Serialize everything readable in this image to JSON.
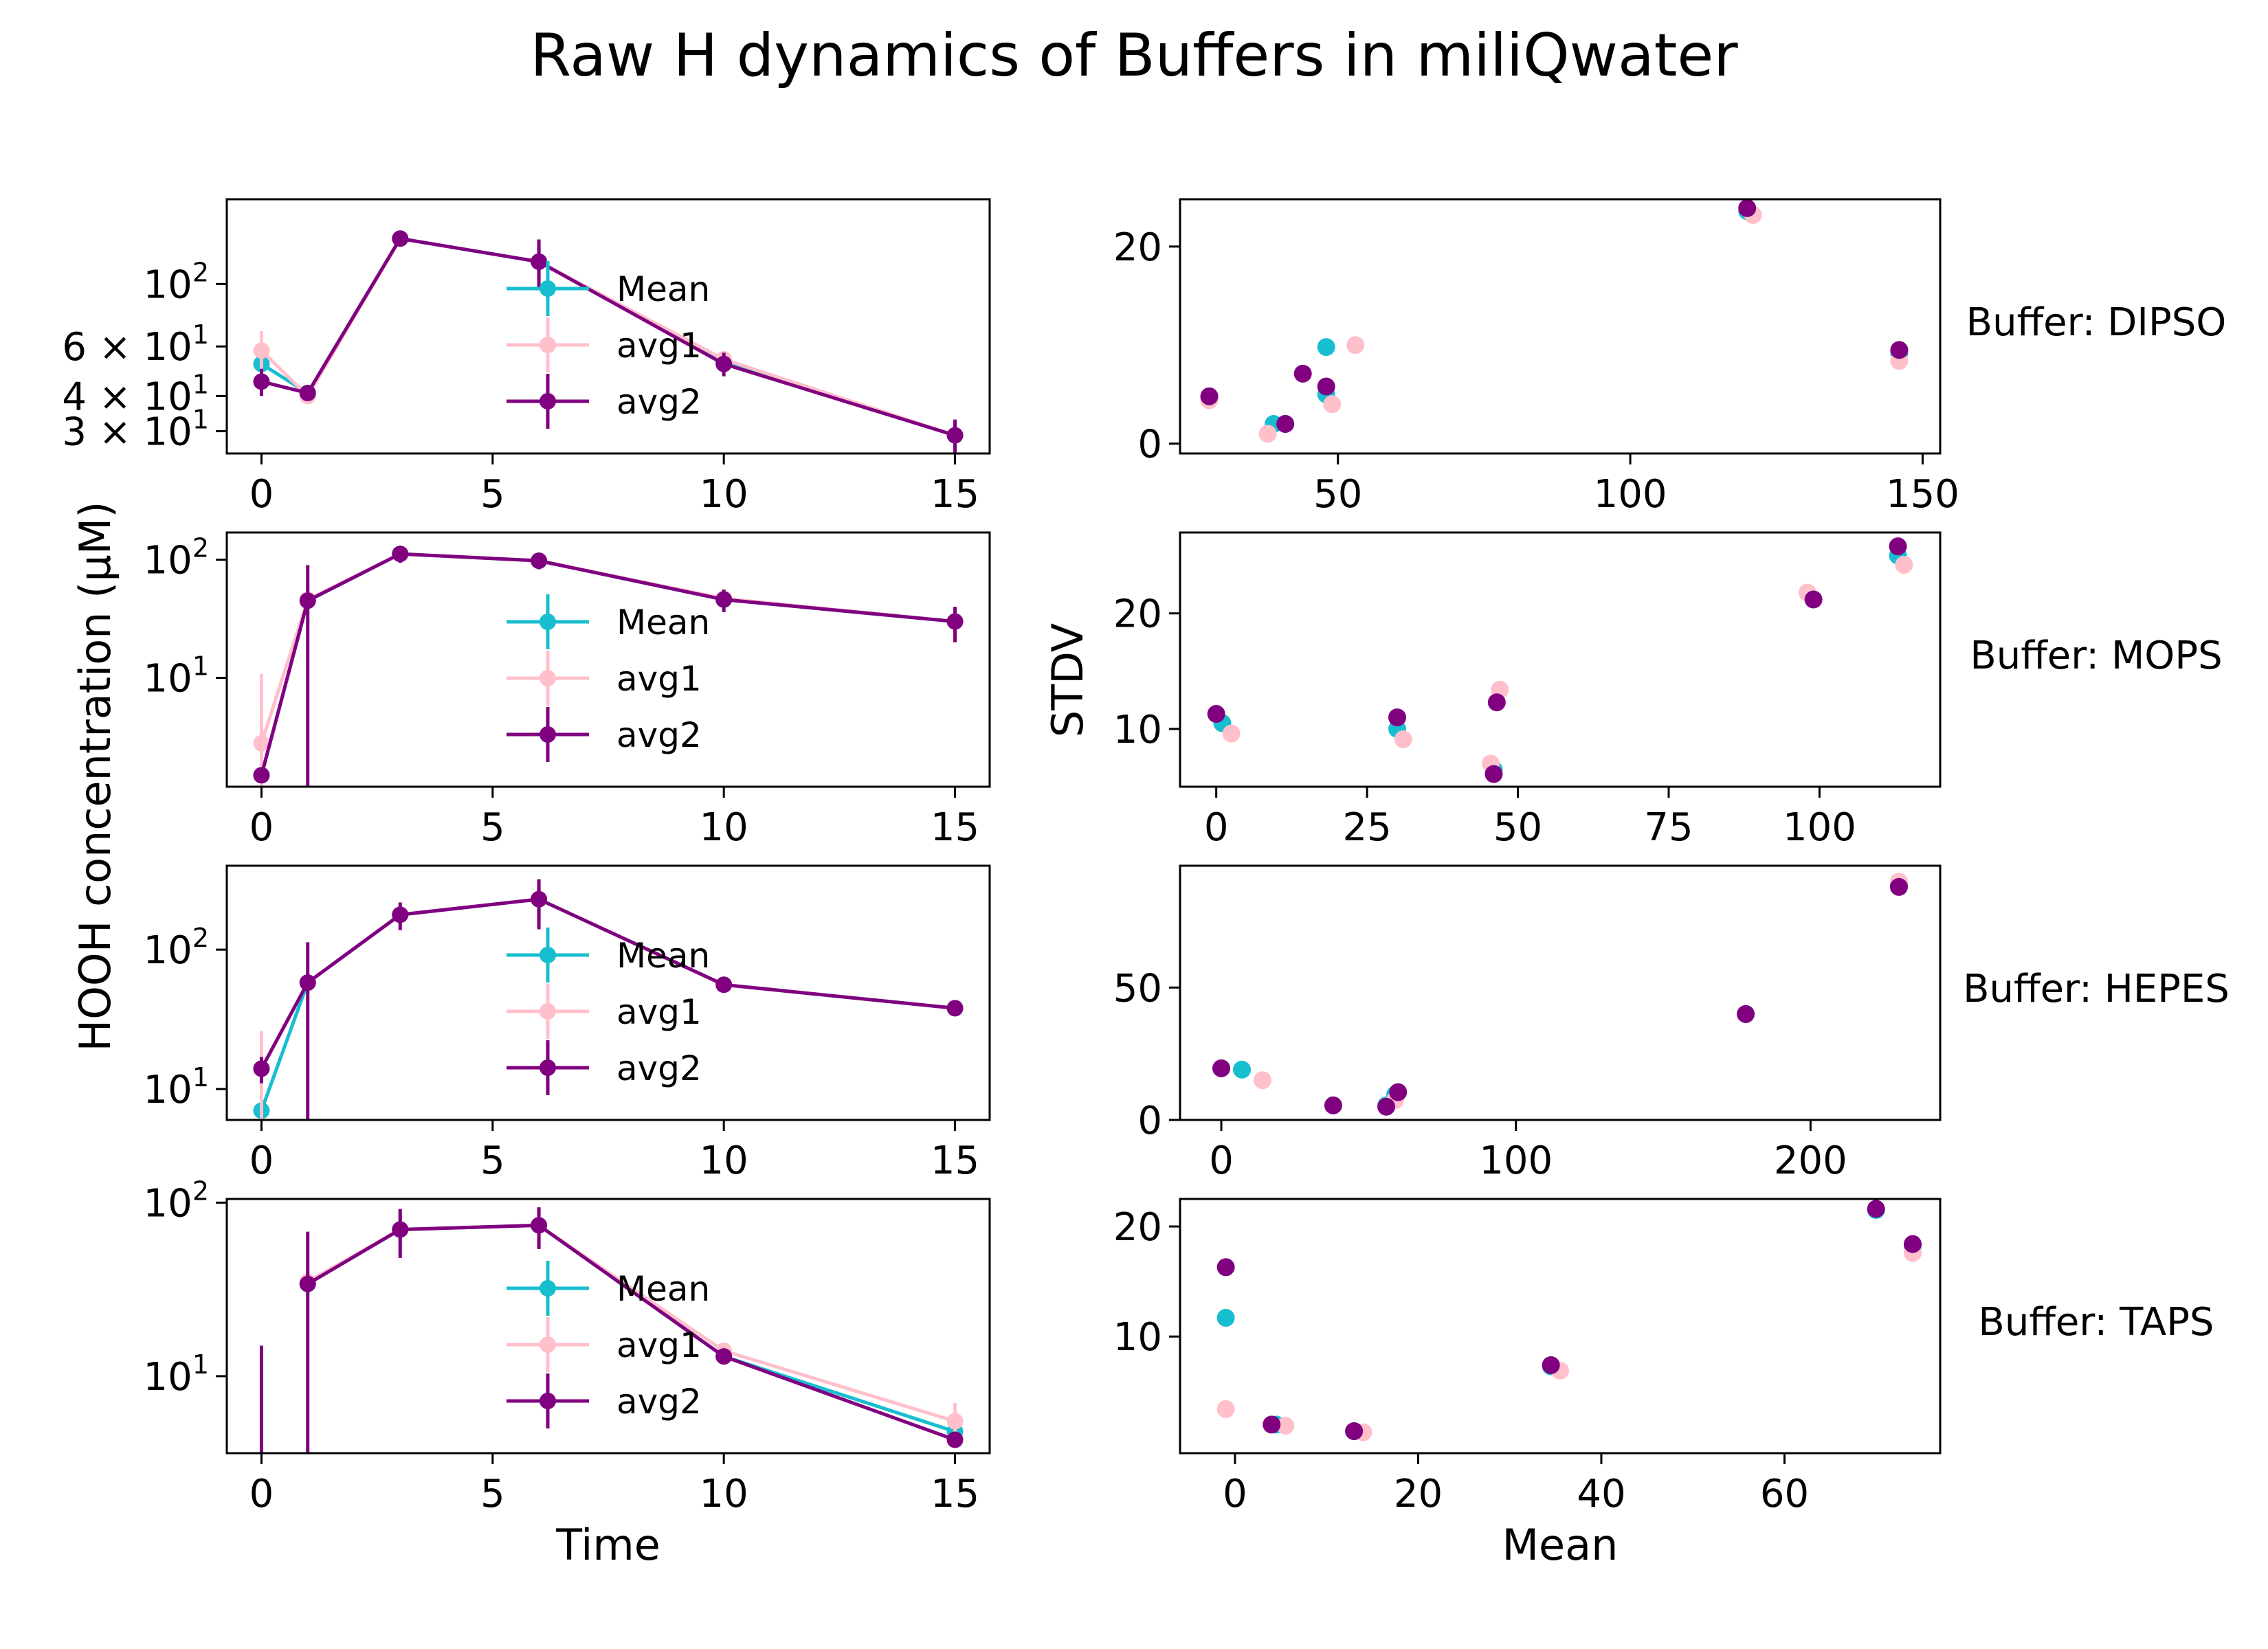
{
  "title": "Raw H dynamics of Buffers in miliQwater",
  "ylabel_left": "HOOH concentration (µM)",
  "ylabel_right": "STDV",
  "xlabel_left": "Time",
  "xlabel_right": "Mean",
  "colors": {
    "Mean": "#17becf",
    "avg1": "#ffc0cb",
    "avg2": "#800080"
  },
  "chart_data": [
    {
      "type": "line",
      "panel": "left",
      "row": 0,
      "buffer_label": "Buffer: DIPSO",
      "yscale": "log",
      "xlim": [
        -0.75,
        15.75
      ],
      "ylim": [
        25,
        200
      ],
      "xticks": [
        0,
        5,
        10,
        15
      ],
      "yticks": [
        {
          "value": 100,
          "label": "10",
          "sup": "2"
        },
        {
          "value": 60,
          "label": "6 × 10",
          "sup": "1"
        },
        {
          "value": 40,
          "label": "4 × 10",
          "sup": "1"
        },
        {
          "value": 30,
          "label": "3 × 10",
          "sup": "1"
        }
      ],
      "legend": [
        "Mean",
        "avg1",
        "avg2"
      ],
      "x": [
        0,
        1,
        3,
        6,
        10,
        15
      ],
      "series": [
        {
          "name": "Mean",
          "values": [
            52,
            41,
            145,
            120,
            53,
            29
          ],
          "err": [
            4,
            1,
            3,
            15,
            3,
            3
          ]
        },
        {
          "name": "avg1",
          "values": [
            58,
            40,
            145,
            120,
            54,
            29
          ],
          "err": [
            10,
            1,
            3,
            15,
            3,
            3
          ]
        },
        {
          "name": "avg2",
          "values": [
            45,
            41,
            145,
            120,
            52,
            29
          ],
          "err": [
            5,
            1,
            3,
            24,
            5,
            4
          ]
        }
      ]
    },
    {
      "type": "scatter",
      "panel": "right",
      "row": 0,
      "xlim": [
        23,
        153
      ],
      "ylim": [
        -1,
        24.8
      ],
      "xticks": [
        50,
        100,
        150
      ],
      "yticks": [
        0,
        20
      ],
      "series": [
        {
          "name": "Mean",
          "points": [
            [
              28,
              4.6
            ],
            [
              39,
              2
            ],
            [
              41,
              2
            ],
            [
              48,
              9.8
            ],
            [
              48,
              5
            ],
            [
              146,
              9.2
            ],
            [
              120,
              23.6
            ]
          ]
        },
        {
          "name": "avg1",
          "points": [
            [
              28,
              4.4
            ],
            [
              38,
              1
            ],
            [
              49,
              4
            ],
            [
              53,
              10
            ],
            [
              121,
              23.2
            ],
            [
              146,
              8.4
            ]
          ]
        },
        {
          "name": "avg2",
          "points": [
            [
              28,
              4.8
            ],
            [
              41,
              2
            ],
            [
              44,
              7.1
            ],
            [
              48,
              5.8
            ],
            [
              120,
              23.9
            ],
            [
              146,
              9.5
            ]
          ]
        }
      ]
    },
    {
      "type": "line",
      "panel": "left",
      "row": 1,
      "buffer_label": "Buffer: MOPS",
      "yscale": "log",
      "xlim": [
        -0.75,
        15.75
      ],
      "ylim": [
        1.2,
        170
      ],
      "xticks": [
        0,
        5,
        10,
        15
      ],
      "yticks": [
        {
          "value": 100,
          "label": "10",
          "sup": "2"
        },
        {
          "value": 10,
          "label": "10",
          "sup": "1"
        }
      ],
      "legend": [
        "Mean",
        "avg1",
        "avg2"
      ],
      "x": [
        0,
        1,
        3,
        6,
        10,
        15
      ],
      "series": [
        {
          "name": "Mean",
          "values": [
            1.5,
            45,
            112,
            98,
            46,
            30
          ],
          "err": [
            0.2,
            5,
            15,
            12,
            8,
            6
          ]
        },
        {
          "name": "avg1",
          "values": [
            2.8,
            46,
            112,
            98,
            47,
            30
          ],
          "err": [
            8,
            5,
            15,
            12,
            8,
            6
          ]
        },
        {
          "name": "avg2",
          "values": [
            1.5,
            45,
            112,
            98,
            46,
            30
          ],
          "err": [
            0.2,
            45,
            18,
            15,
            10,
            10
          ]
        }
      ]
    },
    {
      "type": "scatter",
      "panel": "right",
      "row": 1,
      "xlim": [
        -6,
        120
      ],
      "ylim": [
        5,
        27
      ],
      "xticks": [
        0,
        25,
        50,
        75,
        100
      ],
      "yticks": [
        10,
        20
      ],
      "series": [
        {
          "name": "Mean",
          "points": [
            [
              1,
              10.5
            ],
            [
              30,
              10
            ],
            [
              46,
              6.5
            ],
            [
              113,
              25
            ]
          ]
        },
        {
          "name": "avg1",
          "points": [
            [
              2.5,
              9.6
            ],
            [
              31,
              9.1
            ],
            [
              45.5,
              7
            ],
            [
              47,
              13.4
            ],
            [
              98,
              21.8
            ],
            [
              114,
              24.2
            ]
          ]
        },
        {
          "name": "avg2",
          "points": [
            [
              0,
              11.3
            ],
            [
              30,
              11
            ],
            [
              46,
              6.1
            ],
            [
              46.5,
              12.3
            ],
            [
              99,
              21.2
            ],
            [
              113,
              25.8
            ]
          ]
        }
      ]
    },
    {
      "type": "line",
      "panel": "left",
      "row": 2,
      "buffer_label": "Buffer: HEPES",
      "yscale": "log",
      "xlim": [
        -0.75,
        15.75
      ],
      "ylim": [
        6,
        400
      ],
      "xticks": [
        0,
        5,
        10,
        15
      ],
      "yticks": [
        {
          "value": 100,
          "label": "10",
          "sup": "2"
        },
        {
          "value": 10,
          "label": "10",
          "sup": "1"
        }
      ],
      "legend": [
        "Mean",
        "avg1",
        "avg2"
      ],
      "x": [
        0,
        1,
        3,
        6,
        10,
        15
      ],
      "series": [
        {
          "name": "Mean",
          "values": [
            7,
            58,
            178,
            230,
            56,
            38
          ],
          "err": [
            0.3,
            5,
            30,
            60,
            4,
            2
          ]
        },
        {
          "name": "avg1",
          "values": [
            14,
            58,
            178,
            230,
            56,
            38
          ],
          "err": [
            12,
            5,
            30,
            60,
            4,
            2
          ]
        },
        {
          "name": "avg2",
          "values": [
            14,
            58,
            178,
            230,
            56,
            38
          ],
          "err": [
            3,
            55,
            40,
            90,
            4,
            2
          ]
        }
      ]
    },
    {
      "type": "scatter",
      "panel": "right",
      "row": 2,
      "xlim": [
        -14,
        244
      ],
      "ylim": [
        0,
        96
      ],
      "xticks": [
        0,
        100,
        200
      ],
      "yticks": [
        0,
        50
      ],
      "series": [
        {
          "name": "Mean",
          "points": [
            [
              7,
              19
            ],
            [
              56,
              5.5
            ],
            [
              59,
              9.5
            ],
            [
              178,
              40
            ],
            [
              230,
              89
            ]
          ]
        },
        {
          "name": "avg1",
          "points": [
            [
              14,
              15
            ],
            [
              59,
              7.5
            ],
            [
              230,
              90
            ]
          ]
        },
        {
          "name": "avg2",
          "points": [
            [
              0,
              19.5
            ],
            [
              38,
              5.5
            ],
            [
              56,
              5
            ],
            [
              60,
              10.5
            ],
            [
              178,
              40
            ],
            [
              230,
              88
            ]
          ]
        }
      ]
    },
    {
      "type": "line",
      "panel": "left",
      "row": 3,
      "buffer_label": "Buffer: TAPS",
      "yscale": "log",
      "xlim": [
        -0.75,
        15.75
      ],
      "ylim": [
        3.6,
        105
      ],
      "xticks": [
        0,
        5,
        10,
        15
      ],
      "yticks": [
        {
          "value": 100,
          "label": "10",
          "sup": "2"
        },
        {
          "value": 10,
          "label": "10",
          "sup": "1"
        }
      ],
      "legend": [
        "Mean",
        "avg1",
        "avg2"
      ],
      "x": [
        0,
        1,
        3,
        6,
        10,
        15
      ],
      "series": [
        {
          "name": "Mean",
          "values": [
            null,
            34,
            70,
            74,
            13,
            4.8
          ],
          "err": [
            0,
            4,
            20,
            18,
            1,
            0.5
          ]
        },
        {
          "name": "avg1",
          "values": [
            null,
            35,
            70,
            74,
            14,
            5.5
          ],
          "err": [
            0,
            6,
            20,
            18,
            1.5,
            1.5
          ]
        },
        {
          "name": "avg2",
          "values": [
            null,
            34,
            70,
            74,
            13,
            4.3
          ],
          "err": [
            0,
            34,
            22,
            20,
            1,
            0.3
          ]
        }
      ],
      "extra_errbars": [
        {
          "x": 0,
          "low": 3.6,
          "high": 15,
          "color": "avg2"
        }
      ]
    },
    {
      "type": "scatter",
      "panel": "right",
      "row": 3,
      "xlim": [
        -6,
        77
      ],
      "ylim": [
        -0.6,
        22.5
      ],
      "xticks": [
        0,
        20,
        40,
        60
      ],
      "yticks": [
        10,
        20
      ],
      "series": [
        {
          "name": "Mean",
          "points": [
            [
              -1,
              11.7
            ],
            [
              4.5,
              2
            ],
            [
              13,
              1.4
            ],
            [
              34.5,
              7.3
            ],
            [
              70,
              21.5
            ],
            [
              74,
              18.2
            ]
          ]
        },
        {
          "name": "avg1",
          "points": [
            [
              -1,
              3.4
            ],
            [
              5.5,
              1.9
            ],
            [
              14,
              1.3
            ],
            [
              35.5,
              6.9
            ],
            [
              74,
              17.6
            ]
          ]
        },
        {
          "name": "avg2",
          "points": [
            [
              -1,
              16.3
            ],
            [
              4,
              2
            ],
            [
              13,
              1.4
            ],
            [
              34.5,
              7.4
            ],
            [
              70,
              21.6
            ],
            [
              74,
              18.4
            ]
          ]
        }
      ]
    }
  ]
}
